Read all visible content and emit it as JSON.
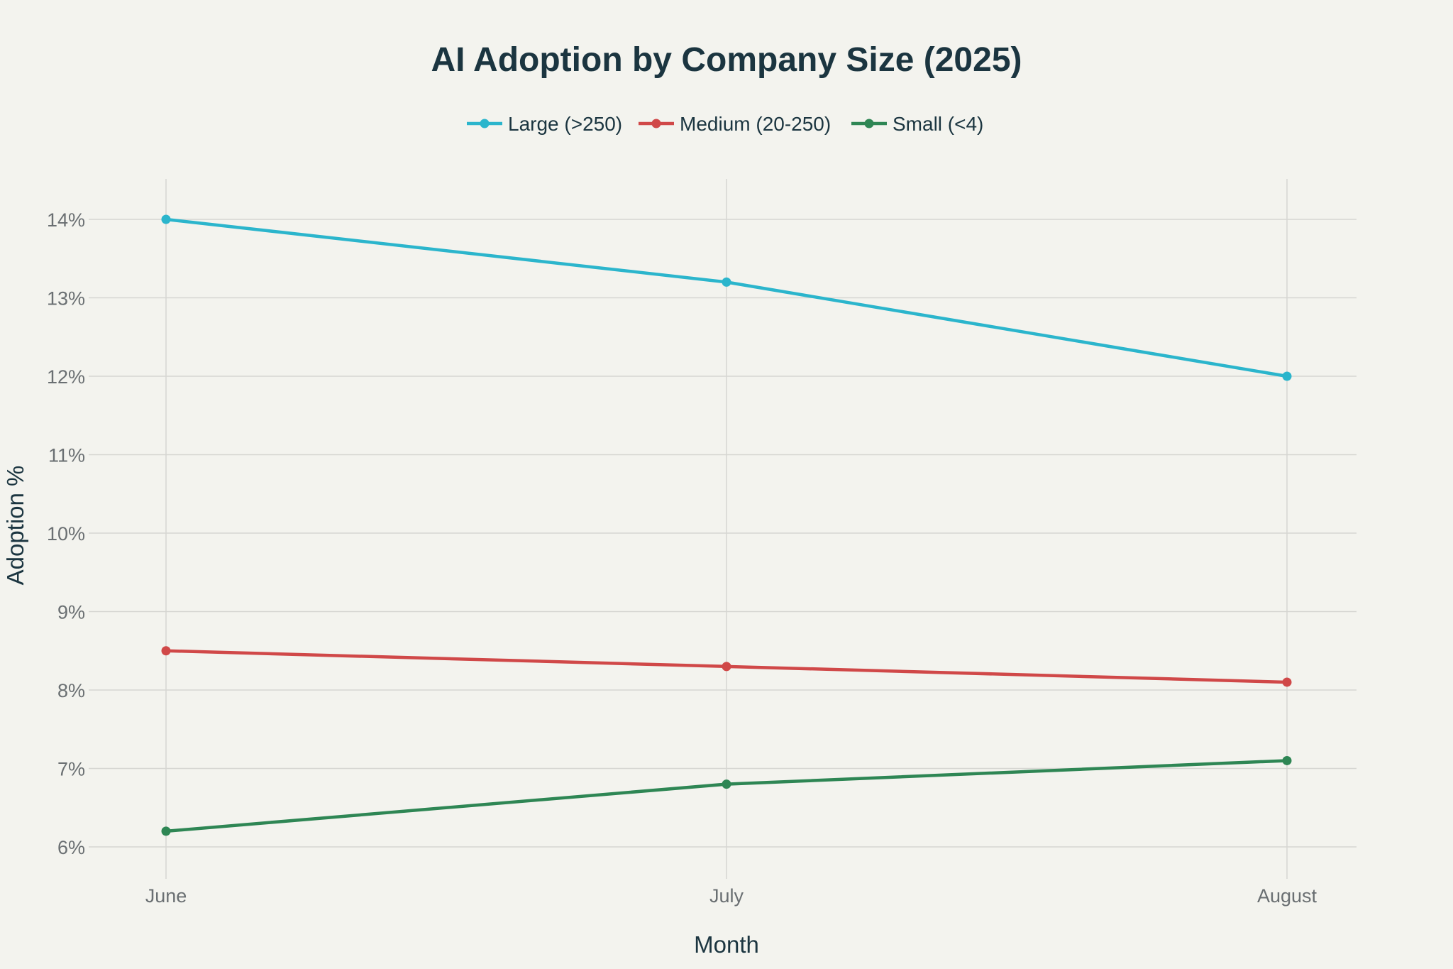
{
  "chart_data": {
    "type": "line",
    "title": "AI Adoption by Company Size (2025)",
    "xlabel": "Month",
    "ylabel": "Adoption %",
    "categories": [
      "June",
      "July",
      "August"
    ],
    "ylim": [
      5.6,
      14.5
    ],
    "yticks": [
      6,
      7,
      8,
      9,
      10,
      11,
      12,
      13,
      14
    ],
    "ytick_labels": [
      "6%",
      "7%",
      "8%",
      "9%",
      "10%",
      "11%",
      "12%",
      "13%",
      "14%"
    ],
    "grid": true,
    "legend_position": "top-center",
    "series": [
      {
        "name": "Large (>250)",
        "color": "#2bb5cc",
        "values": [
          14.0,
          13.2,
          12.0
        ]
      },
      {
        "name": "Medium (20-250)",
        "color": "#d04848",
        "values": [
          8.5,
          8.3,
          8.1
        ]
      },
      {
        "name": "Small (<4)",
        "color": "#2e8654",
        "values": [
          6.2,
          6.8,
          7.1
        ]
      }
    ]
  }
}
